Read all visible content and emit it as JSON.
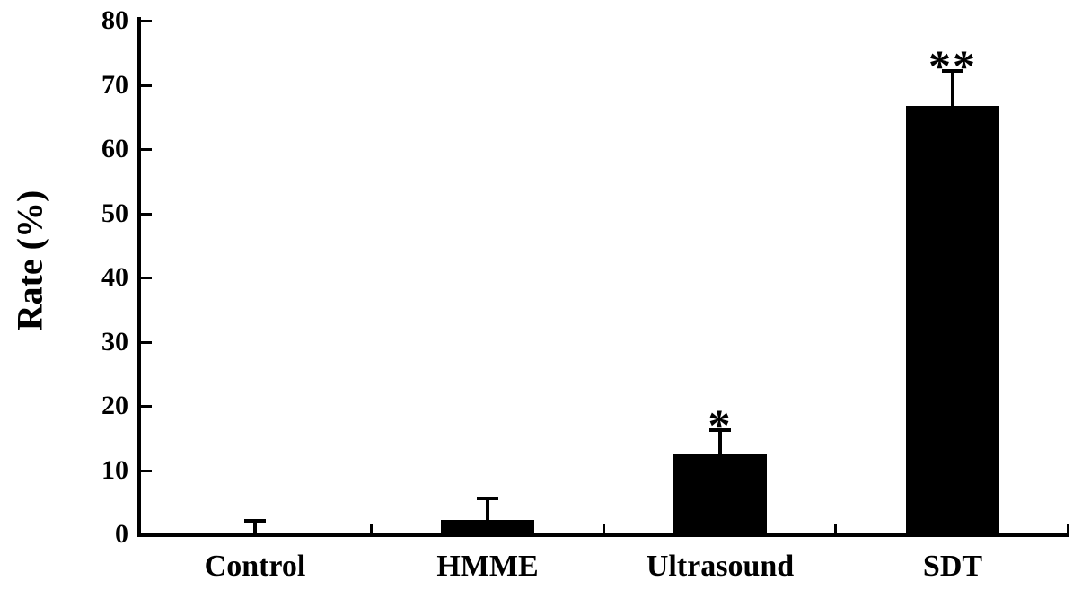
{
  "figure": {
    "background_color": "#ffffff",
    "ink_color": "#000000"
  },
  "chart_data": {
    "type": "bar",
    "title": "",
    "xlabel": "",
    "ylabel": "Rate (%)",
    "categories": [
      "Control",
      "HMME",
      "Ultrasound",
      "SDT"
    ],
    "values": [
      0,
      2.3,
      12.6,
      66.8
    ],
    "errors": [
      2.3,
      3.4,
      3.8,
      5.5
    ],
    "error_tops": [
      2.3,
      5.7,
      16.4,
      72.3
    ],
    "annotations": [
      "",
      "",
      "*",
      "**"
    ],
    "ylim": [
      0,
      80
    ],
    "yticks": [
      0,
      10,
      20,
      30,
      40,
      50,
      60,
      70,
      80
    ],
    "bar_color": "#000000",
    "axis_color": "#000000",
    "grid": false,
    "legend": false
  }
}
